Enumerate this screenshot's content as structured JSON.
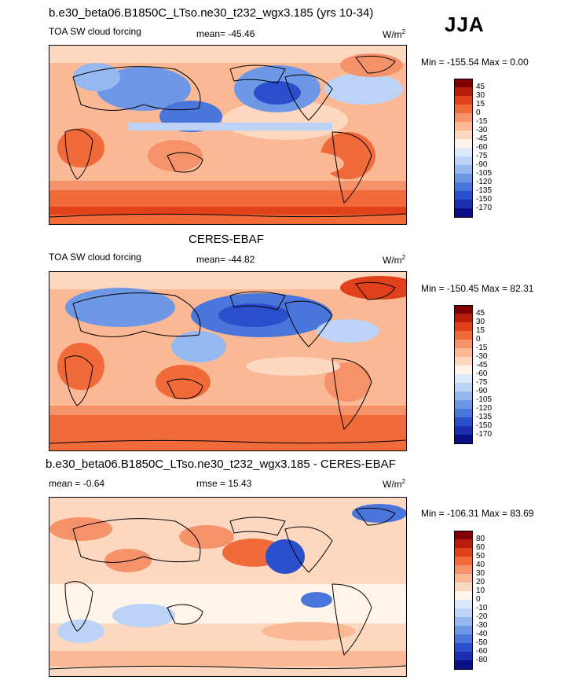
{
  "season": "JJA",
  "panels": [
    {
      "title": "b.e30_beta06.B1850C_LTso.ne30_t232_wgx3.185 (yrs 10-34)",
      "left_label": "TOA SW cloud forcing",
      "center_label": "mean= -45.46",
      "units": "W/m",
      "units_sup": "2",
      "minmax": "Min = -155.54 Max =   0.00",
      "colorbar": {
        "labels": [
          "45",
          "30",
          "15",
          "0",
          "-15",
          "-30",
          "-45",
          "-60",
          "-75",
          "-90",
          "-105",
          "-120",
          "-135",
          "-150",
          "-170"
        ],
        "colors": [
          "#7f0000",
          "#b71d0b",
          "#e0401a",
          "#f06a3a",
          "#f6926a",
          "#fab894",
          "#fdd8c0",
          "#fff4ea",
          "#dce9fb",
          "#bcd3f7",
          "#96b8f0",
          "#6e98e6",
          "#4a76dc",
          "#2a4fcc",
          "#1a2eae",
          "#0a0f85"
        ]
      }
    },
    {
      "title": "CERES-EBAF",
      "left_label": "TOA SW cloud forcing",
      "center_label": "mean= -44.82",
      "units": "W/m",
      "units_sup": "2",
      "minmax": "Min = -150.45 Max =  82.31",
      "colorbar": {
        "labels": [
          "45",
          "30",
          "15",
          "0",
          "-15",
          "-30",
          "-45",
          "-60",
          "-75",
          "-90",
          "-105",
          "-120",
          "-135",
          "-150",
          "-170"
        ],
        "colors": [
          "#7f0000",
          "#b71d0b",
          "#e0401a",
          "#f06a3a",
          "#f6926a",
          "#fab894",
          "#fdd8c0",
          "#fff4ea",
          "#dce9fb",
          "#bcd3f7",
          "#96b8f0",
          "#6e98e6",
          "#4a76dc",
          "#2a4fcc",
          "#1a2eae",
          "#0a0f85"
        ]
      }
    },
    {
      "title": "b.e30_beta06.B1850C_LTso.ne30_t232_wgx3.185 - CERES-EBAF",
      "left_label": "mean =  -0.64",
      "center_label": "rmse =  15.43",
      "units": "W/m",
      "units_sup": "2",
      "minmax": "Min = -106.31 Max =  83.69",
      "colorbar": {
        "labels": [
          "80",
          "60",
          "50",
          "40",
          "30",
          "20",
          "10",
          "0",
          "-10",
          "-20",
          "-30",
          "-40",
          "-50",
          "-60",
          "-80"
        ],
        "colors": [
          "#7f0000",
          "#b71d0b",
          "#e0401a",
          "#f06a3a",
          "#f6926a",
          "#fab894",
          "#fdd8c0",
          "#fff4ea",
          "#dce9fb",
          "#bcd3f7",
          "#96b8f0",
          "#6e98e6",
          "#4a76dc",
          "#2a4fcc",
          "#1a2eae",
          "#0a0f85"
        ]
      }
    }
  ]
}
